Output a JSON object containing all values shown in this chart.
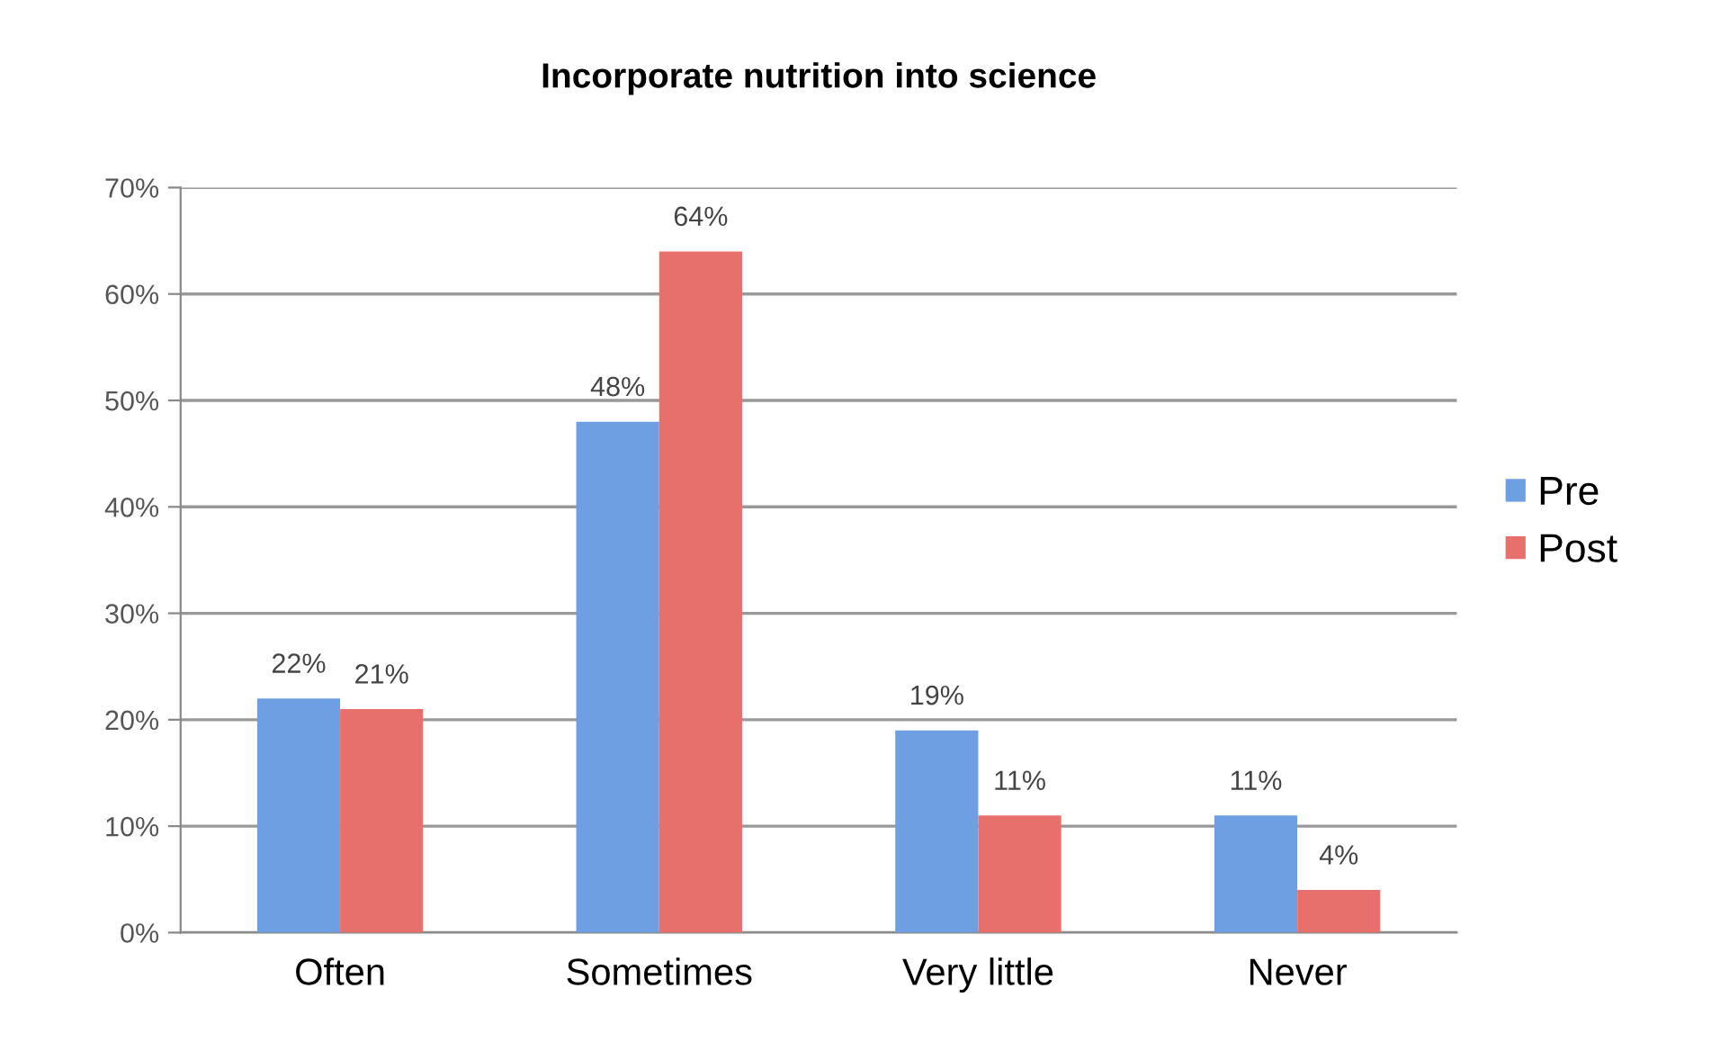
{
  "chart_data": {
    "type": "bar",
    "title": "Incorporate nutrition into science",
    "categories": [
      "Often",
      "Sometimes",
      "Very little",
      "Never"
    ],
    "series": [
      {
        "name": "Pre",
        "color": "#6e9fe3",
        "values": [
          22,
          48,
          19,
          11
        ],
        "value_labels": [
          "22%",
          "48%",
          "19%",
          "11%"
        ]
      },
      {
        "name": "Post",
        "color": "#e8706c",
        "values": [
          21,
          64,
          11,
          4
        ],
        "value_labels": [
          "21%",
          "64%",
          "11%",
          "4%"
        ]
      }
    ],
    "ylim": [
      0,
      70
    ],
    "yticks": [
      {
        "value": 0,
        "label": "0%"
      },
      {
        "value": 10,
        "label": "10%"
      },
      {
        "value": 20,
        "label": "20%"
      },
      {
        "value": 30,
        "label": "30%"
      },
      {
        "value": 40,
        "label": "40%"
      },
      {
        "value": 50,
        "label": "50%"
      },
      {
        "value": 60,
        "label": "60%"
      },
      {
        "value": 70,
        "label": "70%"
      }
    ],
    "grid": "y",
    "legend": "right"
  }
}
